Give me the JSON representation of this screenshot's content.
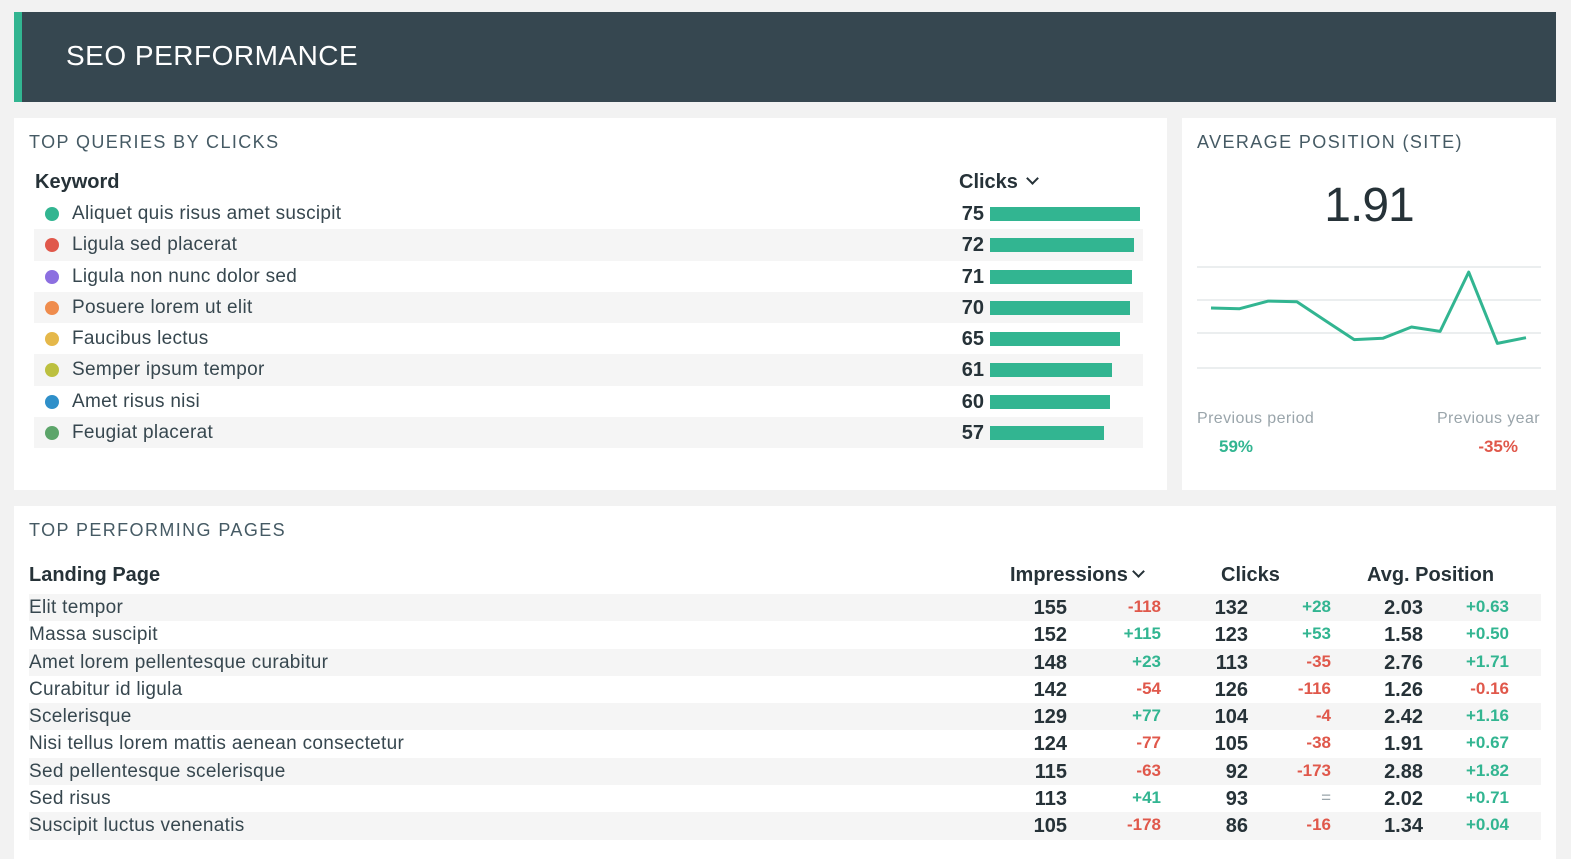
{
  "header": {
    "title": "SEO PERFORMANCE"
  },
  "top_queries": {
    "title": "TOP QUERIES BY CLICKS",
    "col_keyword": "Keyword",
    "col_clicks": "Clicks",
    "max_value": 75,
    "rows": [
      {
        "label": "Aliquet quis risus amet suscipit",
        "value": 75,
        "color": "#32b591"
      },
      {
        "label": "Ligula sed placerat",
        "value": 72,
        "color": "#e0584b"
      },
      {
        "label": "Ligula non nunc dolor sed",
        "value": 71,
        "color": "#8c6fe0"
      },
      {
        "label": "Posuere lorem ut elit",
        "value": 70,
        "color": "#ef8c4d"
      },
      {
        "label": "Faucibus lectus",
        "value": 65,
        "color": "#e5b84a"
      },
      {
        "label": "Semper ipsum tempor",
        "value": 61,
        "color": "#bcc03f"
      },
      {
        "label": "Amet risus nisi",
        "value": 60,
        "color": "#2f8fc9"
      },
      {
        "label": "Feugiat placerat",
        "value": 57,
        "color": "#5ca56a"
      }
    ],
    "bar_color": "#32b591"
  },
  "avg_position": {
    "title": "AVERAGE POSITION (SITE)",
    "value": "1.91",
    "prev_period_label": "Previous period",
    "prev_period_value": "59%",
    "prev_year_label": "Previous year",
    "prev_year_value": "-35%",
    "chart_data": {
      "type": "line",
      "values": [
        2.25,
        2.24,
        2.36,
        2.35,
        2.05,
        1.75,
        1.77,
        1.95,
        1.88,
        2.82,
        1.69,
        1.78
      ],
      "ylim": [
        1.3,
        2.9
      ],
      "grid": true,
      "color": "#32b591"
    }
  },
  "top_pages": {
    "title": "TOP PERFORMING PAGES",
    "col_page": "Landing Page",
    "col_impressions": "Impressions",
    "col_clicks": "Clicks",
    "col_avgpos": "Avg. Position",
    "rows": [
      {
        "page": "Elit tempor",
        "impressions": "155",
        "imp_delta": "-118",
        "clicks": "132",
        "clicks_delta": "+28",
        "avgpos": "2.03",
        "avgpos_delta": "+0.63"
      },
      {
        "page": "Massa suscipit",
        "impressions": "152",
        "imp_delta": "+115",
        "clicks": "123",
        "clicks_delta": "+53",
        "avgpos": "1.58",
        "avgpos_delta": "+0.50"
      },
      {
        "page": "Amet lorem pellentesque curabitur",
        "impressions": "148",
        "imp_delta": "+23",
        "clicks": "113",
        "clicks_delta": "-35",
        "avgpos": "2.76",
        "avgpos_delta": "+1.71"
      },
      {
        "page": "Curabitur id ligula",
        "impressions": "142",
        "imp_delta": "-54",
        "clicks": "126",
        "clicks_delta": "-116",
        "avgpos": "1.26",
        "avgpos_delta": "-0.16"
      },
      {
        "page": "Scelerisque",
        "impressions": "129",
        "imp_delta": "+77",
        "clicks": "104",
        "clicks_delta": "-4",
        "avgpos": "2.42",
        "avgpos_delta": "+1.16"
      },
      {
        "page": "Nisi tellus lorem mattis aenean consectetur",
        "impressions": "124",
        "imp_delta": "-77",
        "clicks": "105",
        "clicks_delta": "-38",
        "avgpos": "1.91",
        "avgpos_delta": "+0.67"
      },
      {
        "page": "Sed pellentesque scelerisque",
        "impressions": "115",
        "imp_delta": "-63",
        "clicks": "92",
        "clicks_delta": "-173",
        "avgpos": "2.88",
        "avgpos_delta": "+1.82"
      },
      {
        "page": "Sed risus",
        "impressions": "113",
        "imp_delta": "+41",
        "clicks": "93",
        "clicks_delta": "=",
        "avgpos": "2.02",
        "avgpos_delta": "+0.71"
      },
      {
        "page": "Suscipit luctus venenatis",
        "impressions": "105",
        "imp_delta": "-178",
        "clicks": "86",
        "clicks_delta": "-16",
        "avgpos": "1.34",
        "avgpos_delta": "+0.04"
      }
    ]
  }
}
